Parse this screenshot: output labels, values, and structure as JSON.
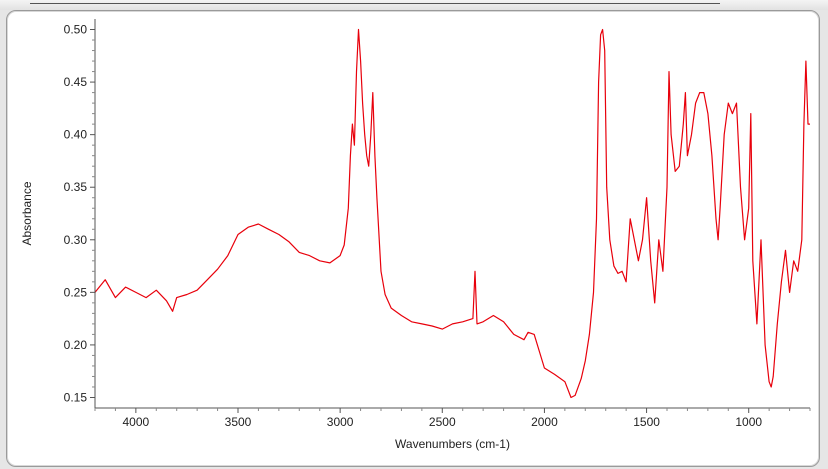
{
  "chart_data": {
    "type": "line",
    "xlabel": "Wavenumbers (cm-1)",
    "ylabel": "Absorbance",
    "xlim": [
      4200,
      700
    ],
    "ylim": [
      0.14,
      0.51
    ],
    "x_reversed": true,
    "x_ticks": [
      4000,
      3500,
      3000,
      2500,
      2000,
      1500,
      1000
    ],
    "x_tick_labels": [
      "4000",
      "3500",
      "3000",
      "2500",
      "2000",
      "1500",
      "1000"
    ],
    "y_ticks": [
      0.15,
      0.2,
      0.25,
      0.3,
      0.35,
      0.4,
      0.45,
      0.5
    ],
    "y_tick_labels": [
      "0.15",
      "0.20",
      "0.25",
      "0.30",
      "0.35",
      "0.40",
      "0.45",
      "0.50"
    ],
    "grid": false,
    "line_color": "#e8000b",
    "series": [
      {
        "points": [
          [
            4200,
            0.25
          ],
          [
            4150,
            0.262
          ],
          [
            4100,
            0.245
          ],
          [
            4050,
            0.255
          ],
          [
            4000,
            0.25
          ],
          [
            3950,
            0.245
          ],
          [
            3900,
            0.252
          ],
          [
            3850,
            0.242
          ],
          [
            3820,
            0.232
          ],
          [
            3800,
            0.245
          ],
          [
            3750,
            0.248
          ],
          [
            3700,
            0.252
          ],
          [
            3650,
            0.262
          ],
          [
            3600,
            0.272
          ],
          [
            3550,
            0.285
          ],
          [
            3500,
            0.305
          ],
          [
            3450,
            0.312
          ],
          [
            3400,
            0.315
          ],
          [
            3350,
            0.31
          ],
          [
            3300,
            0.305
          ],
          [
            3250,
            0.298
          ],
          [
            3200,
            0.288
          ],
          [
            3150,
            0.285
          ],
          [
            3100,
            0.28
          ],
          [
            3050,
            0.278
          ],
          [
            3000,
            0.285
          ],
          [
            2980,
            0.295
          ],
          [
            2960,
            0.33
          ],
          [
            2950,
            0.38
          ],
          [
            2940,
            0.41
          ],
          [
            2930,
            0.39
          ],
          [
            2920,
            0.46
          ],
          [
            2910,
            0.5
          ],
          [
            2900,
            0.47
          ],
          [
            2890,
            0.43
          ],
          [
            2880,
            0.4
          ],
          [
            2870,
            0.38
          ],
          [
            2860,
            0.37
          ],
          [
            2850,
            0.4
          ],
          [
            2840,
            0.44
          ],
          [
            2830,
            0.38
          ],
          [
            2820,
            0.34
          ],
          [
            2800,
            0.27
          ],
          [
            2780,
            0.248
          ],
          [
            2750,
            0.235
          ],
          [
            2700,
            0.228
          ],
          [
            2650,
            0.222
          ],
          [
            2600,
            0.22
          ],
          [
            2550,
            0.218
          ],
          [
            2500,
            0.215
          ],
          [
            2450,
            0.22
          ],
          [
            2400,
            0.222
          ],
          [
            2350,
            0.225
          ],
          [
            2340,
            0.27
          ],
          [
            2330,
            0.22
          ],
          [
            2300,
            0.222
          ],
          [
            2250,
            0.228
          ],
          [
            2200,
            0.222
          ],
          [
            2150,
            0.21
          ],
          [
            2100,
            0.205
          ],
          [
            2080,
            0.212
          ],
          [
            2050,
            0.21
          ],
          [
            2000,
            0.178
          ],
          [
            1950,
            0.172
          ],
          [
            1900,
            0.165
          ],
          [
            1870,
            0.15
          ],
          [
            1850,
            0.152
          ],
          [
            1820,
            0.168
          ],
          [
            1800,
            0.185
          ],
          [
            1780,
            0.21
          ],
          [
            1760,
            0.25
          ],
          [
            1745,
            0.32
          ],
          [
            1735,
            0.45
          ],
          [
            1725,
            0.495
          ],
          [
            1715,
            0.5
          ],
          [
            1705,
            0.48
          ],
          [
            1695,
            0.35
          ],
          [
            1680,
            0.3
          ],
          [
            1660,
            0.275
          ],
          [
            1640,
            0.268
          ],
          [
            1620,
            0.27
          ],
          [
            1600,
            0.26
          ],
          [
            1580,
            0.32
          ],
          [
            1560,
            0.3
          ],
          [
            1540,
            0.28
          ],
          [
            1520,
            0.3
          ],
          [
            1500,
            0.34
          ],
          [
            1480,
            0.28
          ],
          [
            1470,
            0.26
          ],
          [
            1460,
            0.24
          ],
          [
            1440,
            0.3
          ],
          [
            1420,
            0.27
          ],
          [
            1400,
            0.35
          ],
          [
            1390,
            0.46
          ],
          [
            1380,
            0.4
          ],
          [
            1360,
            0.365
          ],
          [
            1340,
            0.37
          ],
          [
            1320,
            0.41
          ],
          [
            1310,
            0.44
          ],
          [
            1300,
            0.38
          ],
          [
            1280,
            0.4
          ],
          [
            1260,
            0.43
          ],
          [
            1240,
            0.44
          ],
          [
            1220,
            0.44
          ],
          [
            1200,
            0.42
          ],
          [
            1180,
            0.38
          ],
          [
            1160,
            0.32
          ],
          [
            1150,
            0.3
          ],
          [
            1140,
            0.33
          ],
          [
            1120,
            0.4
          ],
          [
            1100,
            0.43
          ],
          [
            1080,
            0.42
          ],
          [
            1060,
            0.43
          ],
          [
            1040,
            0.35
          ],
          [
            1020,
            0.3
          ],
          [
            1000,
            0.33
          ],
          [
            990,
            0.42
          ],
          [
            980,
            0.28
          ],
          [
            960,
            0.22
          ],
          [
            940,
            0.3
          ],
          [
            920,
            0.2
          ],
          [
            900,
            0.165
          ],
          [
            890,
            0.16
          ],
          [
            880,
            0.17
          ],
          [
            860,
            0.22
          ],
          [
            840,
            0.26
          ],
          [
            820,
            0.29
          ],
          [
            800,
            0.25
          ],
          [
            780,
            0.28
          ],
          [
            760,
            0.27
          ],
          [
            740,
            0.3
          ],
          [
            730,
            0.41
          ],
          [
            720,
            0.47
          ],
          [
            710,
            0.41
          ],
          [
            700,
            0.41
          ]
        ]
      }
    ]
  }
}
